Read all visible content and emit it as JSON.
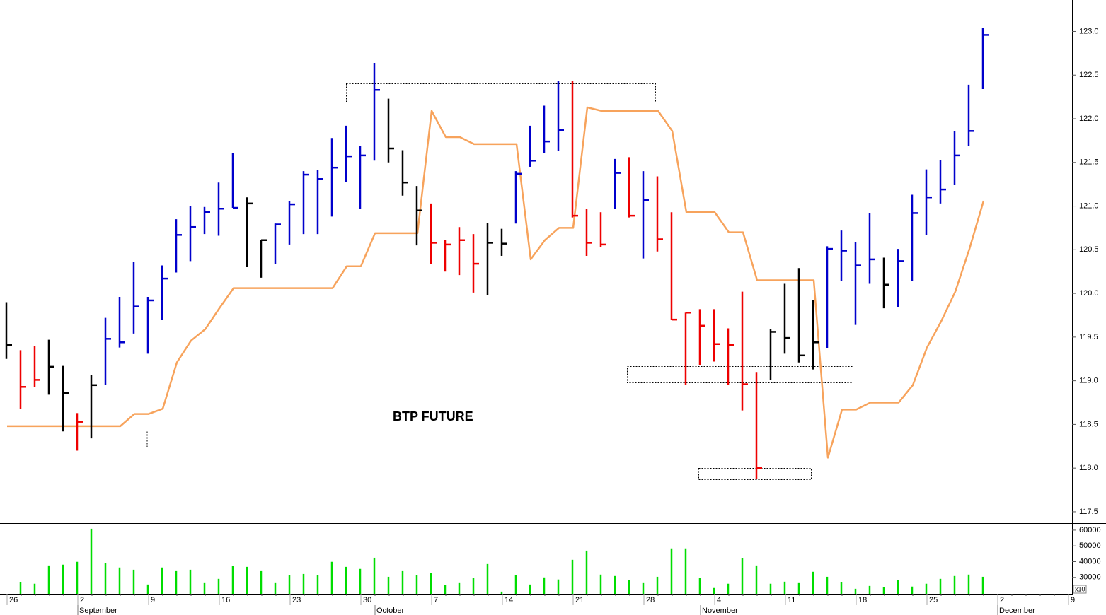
{
  "chart_data": {
    "type": "ohlc",
    "title": "BTP FUTURE",
    "categories": [
      "26",
      null,
      null,
      null,
      null,
      "2",
      null,
      null,
      null,
      null,
      "9",
      null,
      null,
      null,
      null,
      "16",
      null,
      null,
      null,
      null,
      "23",
      null,
      null,
      null,
      null,
      "30",
      null,
      null,
      null,
      null,
      "7",
      null,
      null,
      null,
      null,
      "14",
      null,
      null,
      null,
      null,
      "21",
      null,
      null,
      null,
      null,
      "28",
      null,
      null,
      null,
      null,
      "4",
      null,
      null,
      null,
      null,
      "11",
      null,
      null,
      null,
      null,
      "18",
      null,
      null,
      null,
      null,
      "25",
      null,
      null,
      null,
      null,
      "2",
      null,
      null,
      null,
      null,
      "9"
    ],
    "months": [
      null,
      null,
      null,
      null,
      null,
      "September",
      null,
      null,
      null,
      null,
      null,
      null,
      null,
      null,
      null,
      null,
      null,
      null,
      null,
      null,
      null,
      null,
      null,
      null,
      null,
      null,
      "October",
      null,
      null,
      null,
      null,
      null,
      null,
      null,
      null,
      null,
      null,
      null,
      null,
      null,
      null,
      null,
      null,
      null,
      null,
      null,
      null,
      null,
      null,
      "November",
      null,
      null,
      null,
      null,
      null,
      null,
      null,
      null,
      null,
      null,
      null,
      null,
      null,
      null,
      null,
      null,
      null,
      null,
      null,
      null,
      "December",
      null,
      null,
      null,
      null,
      null
    ],
    "high": [
      119.9,
      119.35,
      119.4,
      119.47,
      119.17,
      118.63,
      119.07,
      119.72,
      119.96,
      120.36,
      119.96,
      120.32,
      120.85,
      121.0,
      120.99,
      121.27,
      121.61,
      121.1,
      120.61,
      120.8,
      121.06,
      121.4,
      121.41,
      121.78,
      121.92,
      121.69,
      122.64,
      122.23,
      121.64,
      121.23,
      121.03,
      120.61,
      120.76,
      120.68,
      120.81,
      120.74,
      121.4,
      121.92,
      122.15,
      122.43,
      122.43,
      120.97,
      120.93,
      121.54,
      121.56,
      121.4,
      121.34,
      120.93,
      119.78,
      119.82,
      119.82,
      119.6,
      120.02,
      119.1,
      119.59,
      120.11,
      120.29,
      119.92,
      120.54,
      120.72,
      120.59,
      120.92,
      120.41,
      120.51,
      121.13,
      121.42,
      121.53,
      121.86,
      122.39,
      123.04,
      null,
      null,
      null,
      null,
      null,
      null
    ],
    "low": [
      119.25,
      118.68,
      118.93,
      118.84,
      118.42,
      118.2,
      118.34,
      118.95,
      119.38,
      119.54,
      119.31,
      119.7,
      120.24,
      120.37,
      120.68,
      120.66,
      120.98,
      120.3,
      120.18,
      120.34,
      120.56,
      120.68,
      120.68,
      120.88,
      121.28,
      120.97,
      121.52,
      121.5,
      121.12,
      120.55,
      120.34,
      120.25,
      120.21,
      120.01,
      119.98,
      120.43,
      120.8,
      121.45,
      121.61,
      121.63,
      120.87,
      120.43,
      120.53,
      120.97,
      120.87,
      120.4,
      120.48,
      119.7,
      118.95,
      119.18,
      119.22,
      118.95,
      118.66,
      117.88,
      119.01,
      119.31,
      119.21,
      119.13,
      119.37,
      120.14,
      119.64,
      120.11,
      119.83,
      119.84,
      120.14,
      120.67,
      121.03,
      121.24,
      121.69,
      122.34,
      null,
      null,
      null,
      null,
      null,
      null
    ],
    "close": [
      119.41,
      118.93,
      119.01,
      119.16,
      118.86,
      118.53,
      118.95,
      119.48,
      119.44,
      119.85,
      119.92,
      120.17,
      120.67,
      120.76,
      120.93,
      120.97,
      120.98,
      121.03,
      120.61,
      120.79,
      121.02,
      121.36,
      121.31,
      121.44,
      121.57,
      121.58,
      122.33,
      121.66,
      121.27,
      120.95,
      120.58,
      120.56,
      120.61,
      120.34,
      120.58,
      120.57,
      121.37,
      121.52,
      121.74,
      121.87,
      120.89,
      120.58,
      120.56,
      121.38,
      120.89,
      121.07,
      120.62,
      119.7,
      119.78,
      119.63,
      119.42,
      119.41,
      118.96,
      118.0,
      119.56,
      119.49,
      119.29,
      119.44,
      120.51,
      120.49,
      120.32,
      120.39,
      120.1,
      120.37,
      120.92,
      121.1,
      121.19,
      121.58,
      121.86,
      122.96,
      null,
      null,
      null,
      null,
      null,
      null
    ],
    "bar_colors": [
      "#000000",
      "#ee0000",
      "#ee0000",
      "#000000",
      "#000000",
      "#ee0000",
      "#000000",
      "#0000cc",
      "#0000cc",
      "#0000cc",
      "#0000cc",
      "#0000cc",
      "#0000cc",
      "#0000cc",
      "#0000cc",
      "#0000cc",
      "#0000cc",
      "#000000",
      "#000000",
      "#0000cc",
      "#0000cc",
      "#0000cc",
      "#0000cc",
      "#0000cc",
      "#0000cc",
      "#0000cc",
      "#0000cc",
      "#000000",
      "#000000",
      "#000000",
      "#ee0000",
      "#ee0000",
      "#ee0000",
      "#ee0000",
      "#000000",
      "#000000",
      "#0000cc",
      "#0000cc",
      "#0000cc",
      "#0000cc",
      "#ee0000",
      "#ee0000",
      "#ee0000",
      "#0000cc",
      "#ee0000",
      "#0000cc",
      "#ee0000",
      "#ee0000",
      "#ee0000",
      "#ee0000",
      "#ee0000",
      "#ee0000",
      "#ee0000",
      "#ee0000",
      "#000000",
      "#000000",
      "#000000",
      "#000000",
      "#0000cc",
      "#0000cc",
      "#0000cc",
      "#0000cc",
      "#000000",
      "#0000cc",
      "#0000cc",
      "#0000cc",
      "#0000cc",
      "#0000cc",
      "#0000cc",
      "#0000cc",
      null,
      null,
      null,
      null,
      null,
      null
    ],
    "stop_line": {
      "color": "#f7a35c",
      "values": [
        118.48,
        118.48,
        118.48,
        118.48,
        118.48,
        118.48,
        118.48,
        118.48,
        118.48,
        118.62,
        118.62,
        118.68,
        119.21,
        119.46,
        119.59,
        119.83,
        120.06,
        120.06,
        120.06,
        120.06,
        120.06,
        120.06,
        120.06,
        120.06,
        120.31,
        120.31,
        120.69,
        120.69,
        120.69,
        120.69,
        122.09,
        121.79,
        121.79,
        121.71,
        121.71,
        121.71,
        121.71,
        120.39,
        120.61,
        120.75,
        120.75,
        122.13,
        122.09,
        122.09,
        122.09,
        122.09,
        122.09,
        121.86,
        120.93,
        120.93,
        120.93,
        120.7,
        120.7,
        120.15,
        120.15,
        120.15,
        120.15,
        120.15,
        118.12,
        118.67,
        118.67,
        118.75,
        118.75,
        118.75,
        118.95,
        119.38,
        119.68,
        120.02,
        120.51,
        121.06,
        null,
        null,
        null,
        null,
        null,
        null
      ]
    },
    "ylim": [
      117.37,
      123.36
    ],
    "yticks": [
      117.5,
      {
        "value": 118,
        "label": "118.0"
      },
      118.5,
      {
        "value": 119,
        "label": "119.0"
      },
      119.5,
      {
        "value": 120,
        "label": "120.0"
      },
      120.5,
      {
        "value": 121,
        "label": "121.0"
      },
      121.5,
      {
        "value": 122,
        "label": "122.0"
      },
      122.5,
      {
        "value": 123,
        "label": "123.0"
      }
    ],
    "volume": {
      "color": "#00dd00",
      "multiplier_label": "x10",
      "values": [
        null,
        26900,
        26000,
        37600,
        38100,
        39900,
        60900,
        38900,
        36300,
        34900,
        25500,
        36300,
        34000,
        34900,
        26400,
        29100,
        37200,
        36700,
        34000,
        26400,
        31300,
        32200,
        31300,
        39900,
        36700,
        35400,
        42500,
        30400,
        34000,
        31300,
        32700,
        25100,
        26400,
        29500,
        38500,
        21000,
        31300,
        25500,
        30000,
        28700,
        41200,
        47000,
        31800,
        30900,
        28200,
        26400,
        30400,
        48400,
        48400,
        29500,
        23300,
        26000,
        42100,
        37600,
        26000,
        27300,
        26400,
        33600,
        30400,
        26900,
        22800,
        24600,
        23700,
        28200,
        24200,
        26000,
        29100,
        30900,
        31800,
        30400,
        null,
        null,
        null,
        null,
        null,
        null
      ],
      "ylim": [
        19600,
        64000
      ],
      "yticks": [
        30000,
        40000,
        50000,
        60000
      ]
    }
  }
}
